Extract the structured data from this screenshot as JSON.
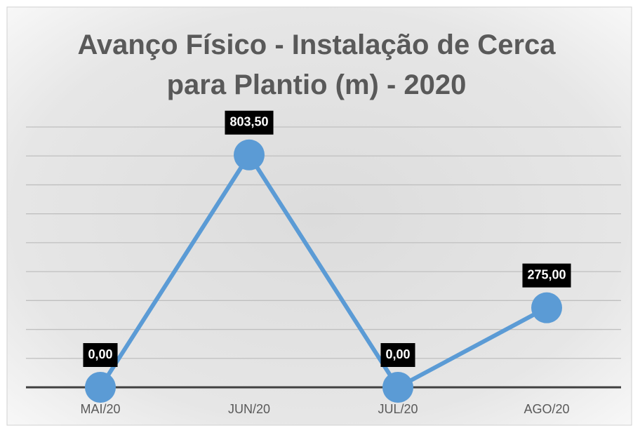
{
  "chart_data": {
    "type": "line",
    "title": "Avanço Físico - Instalação de Cerca para Plantio (m) - 2020",
    "categories": [
      "MAI/20",
      "JUN/20",
      "JUL/20",
      "AGO/20"
    ],
    "series": [
      {
        "name": null,
        "color": "#5b9bd5",
        "values": [
          0,
          803.5,
          0,
          275
        ],
        "value_labels": [
          "0,00",
          "803,50",
          "0,00",
          "275,00"
        ]
      }
    ],
    "ylim": [
      0,
      900
    ],
    "yticks": [
      0,
      100,
      200,
      300,
      400,
      500,
      600,
      700,
      800,
      900
    ],
    "grid": true
  }
}
